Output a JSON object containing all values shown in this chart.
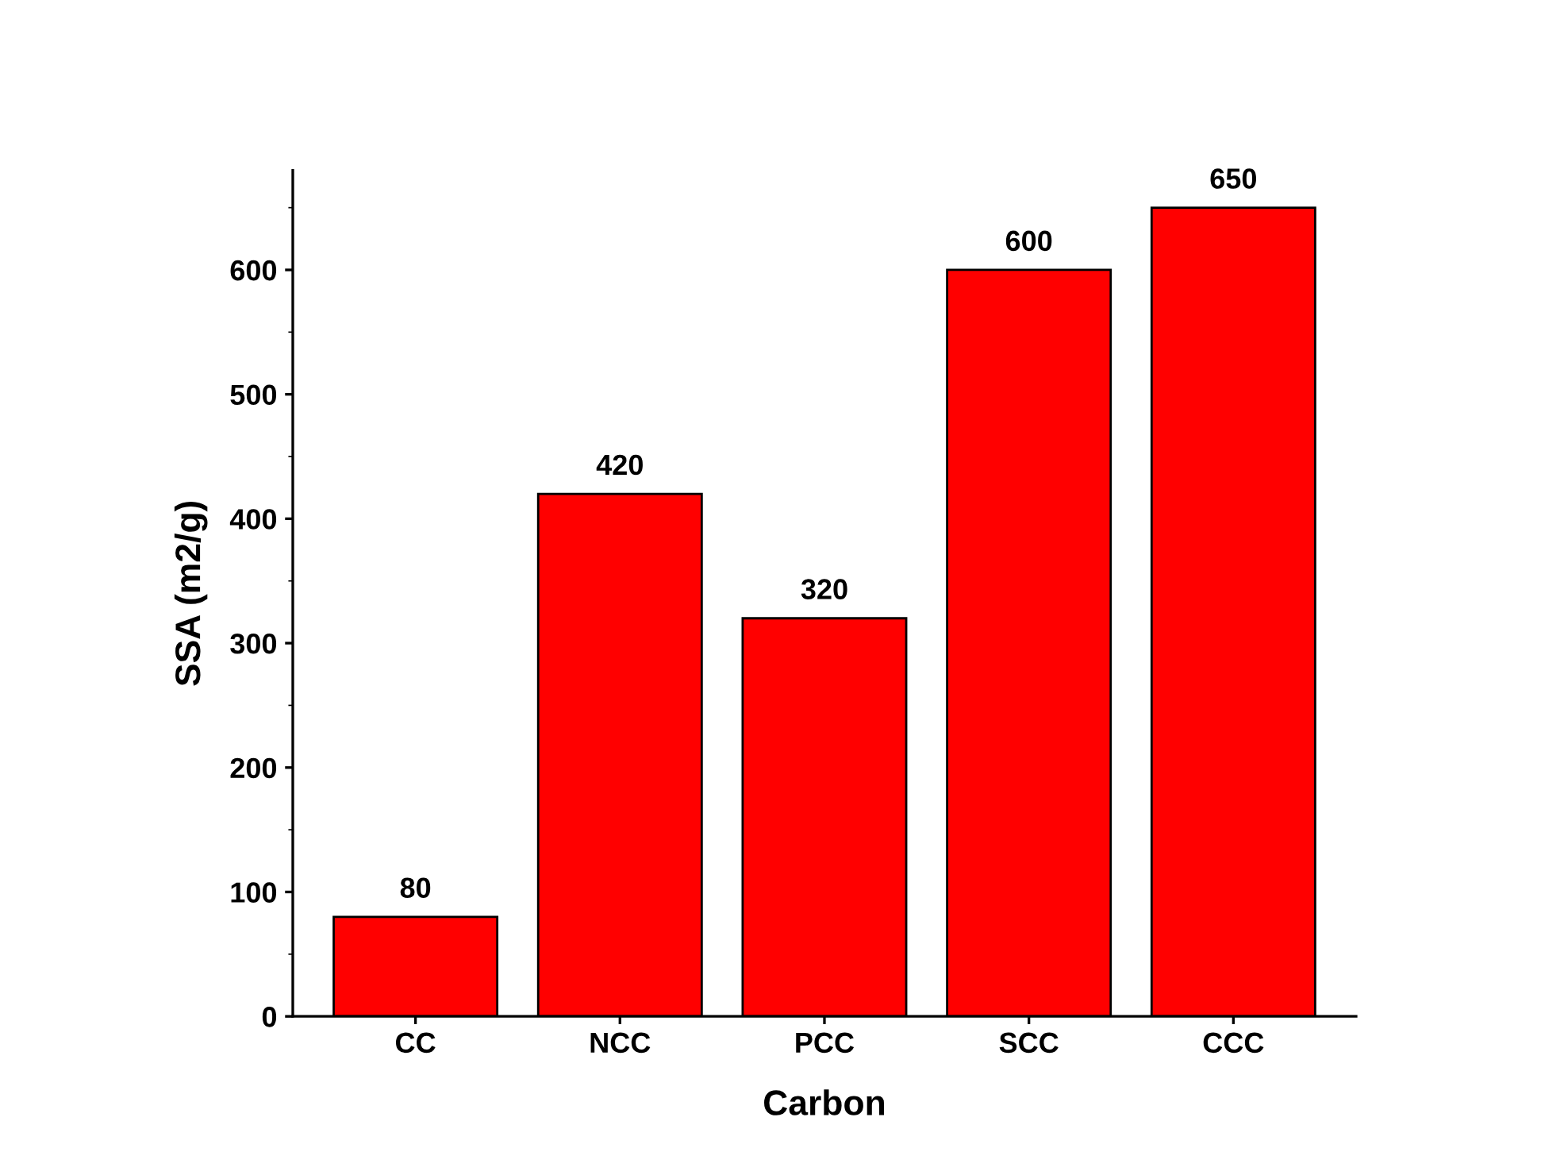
{
  "chart_data": {
    "type": "bar",
    "xlabel": "Carbon",
    "ylabel": "SSA (m2/g)",
    "categories": [
      "CC",
      "NCC",
      "PCC",
      "SCC",
      "CCC"
    ],
    "values": [
      80,
      420,
      320,
      600,
      650
    ],
    "color": "#ff0000",
    "ylim": [
      0,
      680
    ],
    "yticks": [
      0,
      100,
      200,
      300,
      400,
      500,
      600
    ],
    "data_labels": true,
    "grid": false,
    "legend": false
  }
}
